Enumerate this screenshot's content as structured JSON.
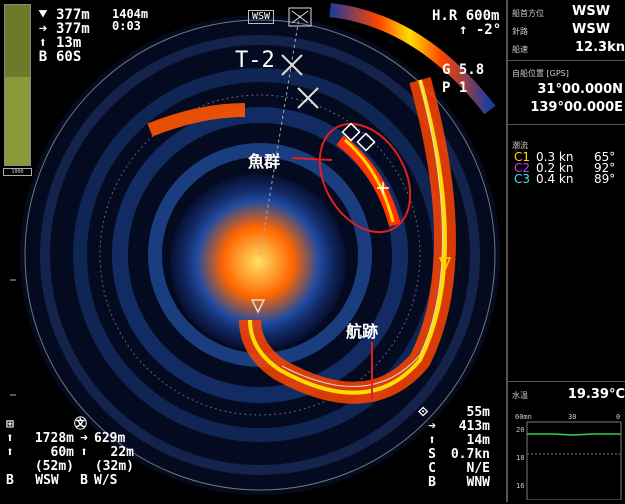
{
  "top_left": {
    "rows": [
      {
        "icon": "⯆",
        "value": "377m"
      },
      {
        "icon": "➜",
        "value": "377m"
      },
      {
        "icon": "⬆",
        "value": "13m"
      },
      {
        "icon": "B",
        "value": "60S"
      }
    ],
    "time_top": "1404m",
    "time_bottom": "0:03"
  },
  "top_center": {
    "wsw": "WSW"
  },
  "top_right": {
    "label": "H.R",
    "range": "600m",
    "tilt": "-2°",
    "g_value": "G 5.8",
    "p_value": "P 1"
  },
  "sonar": {
    "t_label": "T-2",
    "fish_label": "魚群",
    "track_label": "航跡"
  },
  "bottom_left": {
    "rows": [
      [
        "⊞",
        "",
        "㉆",
        ""
      ],
      [
        "⬆",
        "1728m",
        "➜",
        "629m"
      ],
      [
        "⬆",
        "60m",
        "⬆",
        "22m"
      ],
      [
        "",
        "(52m)",
        "",
        "(32m)"
      ],
      [
        "B",
        "WSW",
        "B",
        "W/S"
      ]
    ]
  },
  "bottom_right": {
    "rows": [
      [
        "⟐",
        "55m"
      ],
      [
        "➜",
        "413m"
      ],
      [
        "⬆",
        "14m"
      ],
      [
        "S",
        "0.7kn"
      ],
      [
        "C",
        "N/E"
      ],
      [
        "B",
        "WNW"
      ]
    ]
  },
  "panel": {
    "course": {
      "label1": "船首方位",
      "value1": "WSW",
      "label2": "針路",
      "value2": "WSW",
      "label3": "船速",
      "value3": "12.3kn"
    },
    "position": {
      "label": "自船位置 [GPS]",
      "lat": "31°00.000N",
      "lon": "139°00.000E"
    },
    "current": {
      "label": "潮流",
      "rows": [
        {
          "name": "C1",
          "speed": "0.3 kn",
          "dir": "65°",
          "color": "#ffd700"
        },
        {
          "name": "C2",
          "speed": "0.2 kn",
          "dir": "92°",
          "color": "#c040ff"
        },
        {
          "name": "C3",
          "speed": "0.4 kn",
          "dir": "89°",
          "color": "#40e0ff"
        }
      ]
    },
    "water_temp": {
      "label": "水温",
      "value": "19.39°C",
      "axis_top": [
        "60mn",
        "30",
        "0"
      ],
      "axis_left": [
        "20",
        "18",
        "16"
      ]
    }
  }
}
